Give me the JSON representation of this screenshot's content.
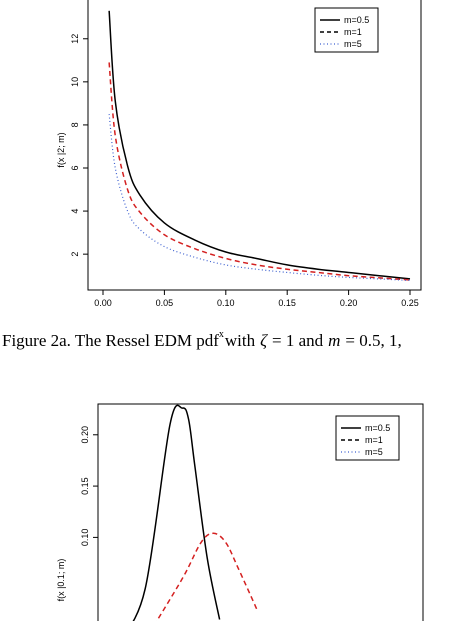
{
  "chart_data": [
    {
      "type": "line",
      "ylabel": "f(x |2; m)",
      "xlim": [
        0.0,
        0.25
      ],
      "ylim": [
        0.8,
        13.8
      ],
      "x_ticks": [
        "0.00",
        "0.05",
        "0.10",
        "0.15",
        "0.20",
        "0.25"
      ],
      "y_ticks": [
        "2",
        "4",
        "6",
        "8",
        "10",
        "12"
      ],
      "grid": false,
      "legend_position": "top-right",
      "series": [
        {
          "name": "m=0.5",
          "color": "#000000",
          "style": "solid",
          "x": [
            0.005,
            0.01,
            0.02,
            0.03,
            0.05,
            0.075,
            0.1,
            0.125,
            0.15,
            0.175,
            0.2,
            0.225,
            0.25
          ],
          "y": [
            13.3,
            9.1,
            6.1,
            4.75,
            3.45,
            2.65,
            2.1,
            1.8,
            1.5,
            1.3,
            1.15,
            1.0,
            0.85
          ]
        },
        {
          "name": "m=1",
          "color": "#d42020",
          "style": "dashed",
          "x": [
            0.005,
            0.01,
            0.02,
            0.03,
            0.05,
            0.075,
            0.1,
            0.125,
            0.15,
            0.175,
            0.2,
            0.225,
            0.25
          ],
          "y": [
            10.9,
            7.5,
            5.0,
            3.95,
            2.9,
            2.25,
            1.8,
            1.5,
            1.3,
            1.15,
            1.0,
            0.9,
            0.8
          ]
        },
        {
          "name": "m=5",
          "color": "#3c5fd0",
          "style": "dotted",
          "x": [
            0.005,
            0.01,
            0.02,
            0.03,
            0.05,
            0.075,
            0.1,
            0.125,
            0.15,
            0.175,
            0.2,
            0.225,
            0.25
          ],
          "y": [
            8.5,
            6.0,
            4.0,
            3.15,
            2.35,
            1.85,
            1.5,
            1.3,
            1.15,
            1.02,
            0.92,
            0.85,
            0.78
          ]
        }
      ]
    },
    {
      "type": "line",
      "ylabel": "f(x |0.1; m)",
      "xlim": [
        0.0,
        0.25
      ],
      "ylim": [
        0.0,
        0.23
      ],
      "y_ticks": [
        "0.10",
        "0.15",
        "0.20"
      ],
      "grid": false,
      "legend_position": "top-right",
      "series": [
        {
          "name": "m=0.5",
          "color": "#000000",
          "style": "solid",
          "x": [
            0.01,
            0.03,
            0.05,
            0.06,
            0.065,
            0.07,
            0.08,
            0.09
          ],
          "y": [
            0.0,
            0.05,
            0.21,
            0.226,
            0.215,
            0.17,
            0.08,
            0.02
          ]
        },
        {
          "name": "m=1",
          "color": "#d42020",
          "style": "dashed",
          "x": [
            0.03,
            0.06,
            0.075,
            0.085,
            0.095,
            0.105,
            0.12
          ],
          "y": [
            0.0,
            0.06,
            0.095,
            0.104,
            0.095,
            0.07,
            0.03
          ]
        },
        {
          "name": "m=5",
          "color": "#3c5fd0",
          "style": "dotted",
          "x": [],
          "y": []
        }
      ]
    }
  ],
  "caption_prefix": "Figure 2a. The Ressel EDM pdf",
  "caption_superscript": "x",
  "caption_with": "with",
  "caption_zeta": "ζ",
  "caption_eq1": "= 1 and",
  "caption_m": "m",
  "caption_eq2": "= 0.5,  1,"
}
